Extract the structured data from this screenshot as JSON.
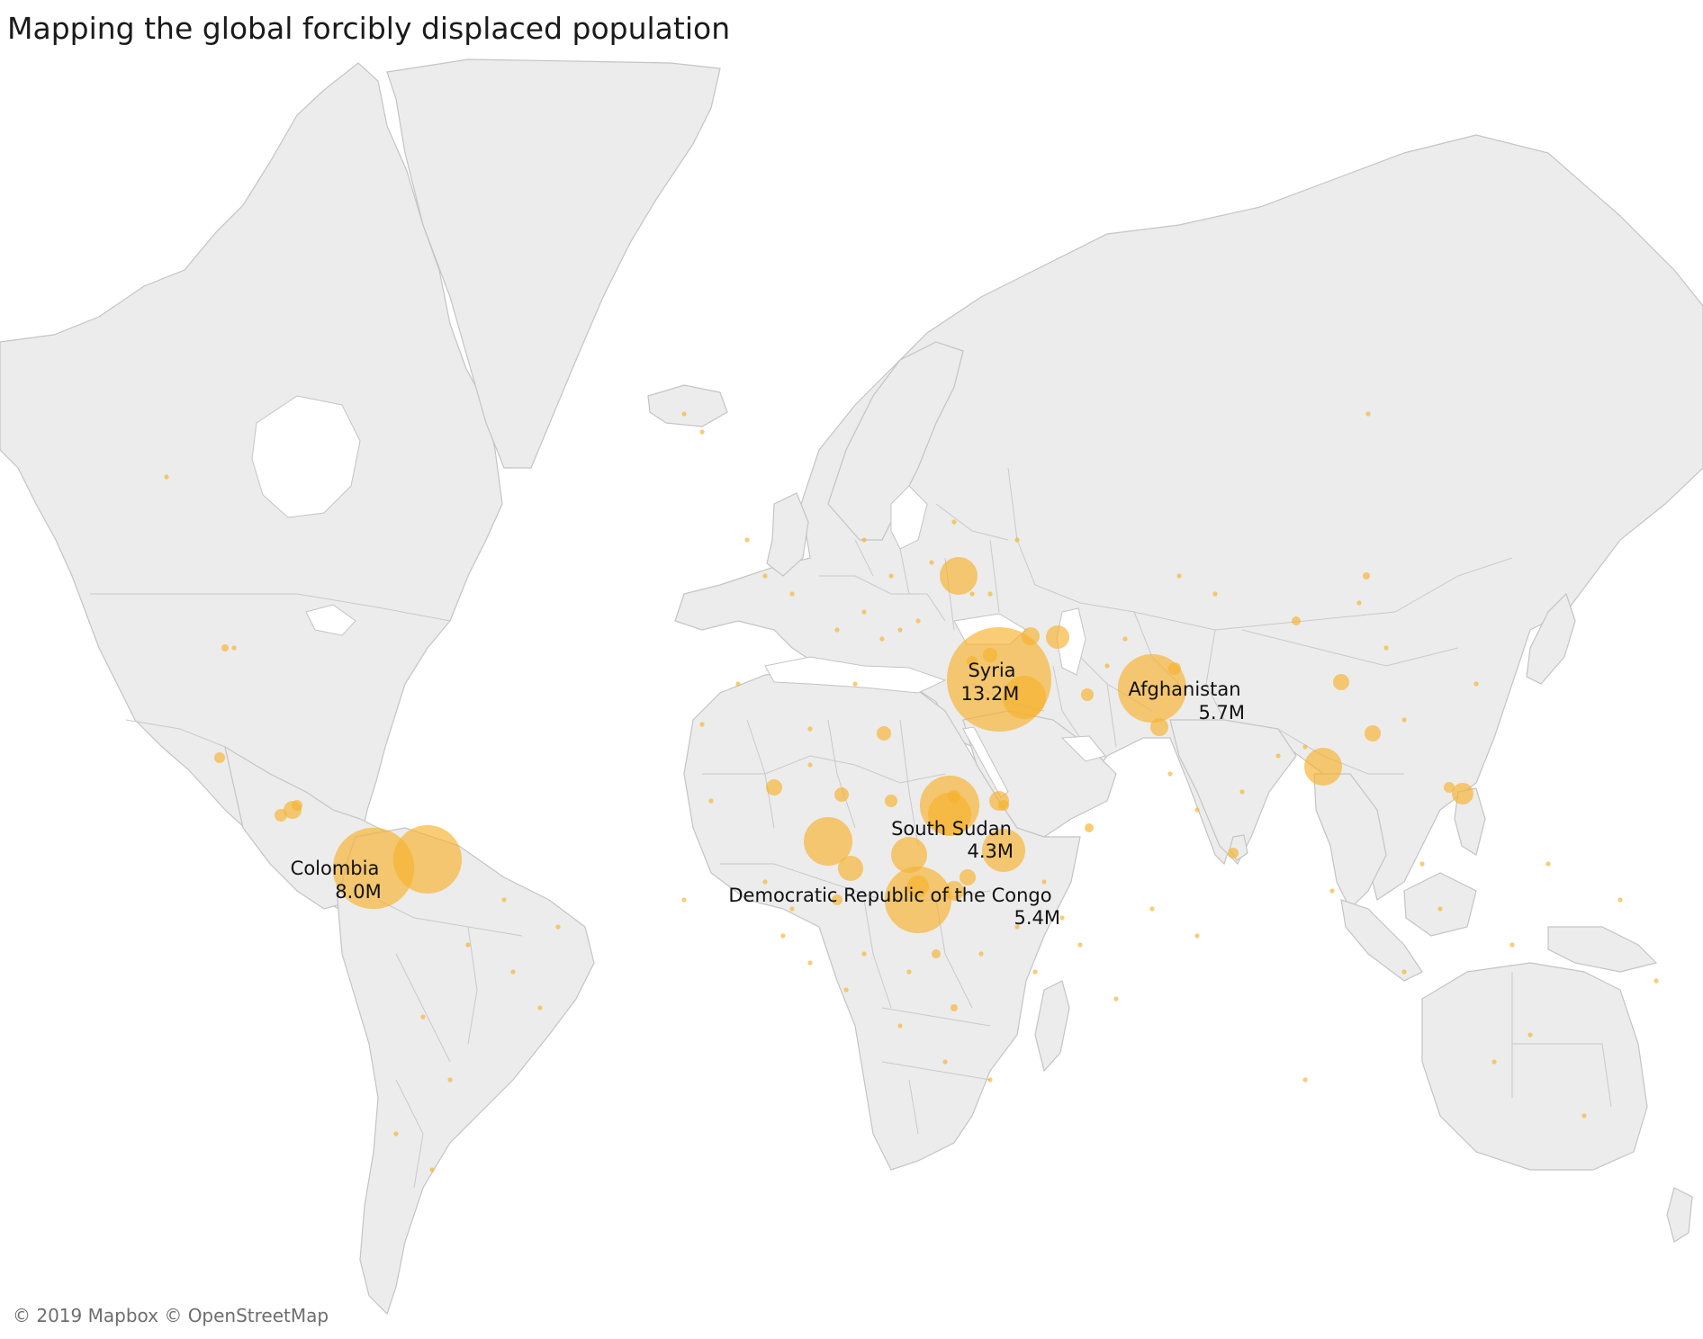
{
  "title": "Mapping the global forcibly displaced population",
  "attribution": "© 2019 Mapbox © OpenStreetMap",
  "style": {
    "land_color": "#ececec",
    "border_color": "#c4c4c4",
    "bubble_color": "#f6b22e",
    "water_color": "#ffffff"
  },
  "labeled_countries": [
    {
      "name": "Syria",
      "value": "13.2M",
      "displaced_millions": 13.2
    },
    {
      "name": "Colombia",
      "value": "8.0M",
      "displaced_millions": 8.0
    },
    {
      "name": "Afghanistan",
      "value": "5.7M",
      "displaced_millions": 5.7
    },
    {
      "name": "Democratic Republic of the Congo",
      "value": "5.4M",
      "displaced_millions": 5.4
    },
    {
      "name": "South Sudan",
      "value": "4.3M",
      "displaced_millions": 4.3
    }
  ]
}
